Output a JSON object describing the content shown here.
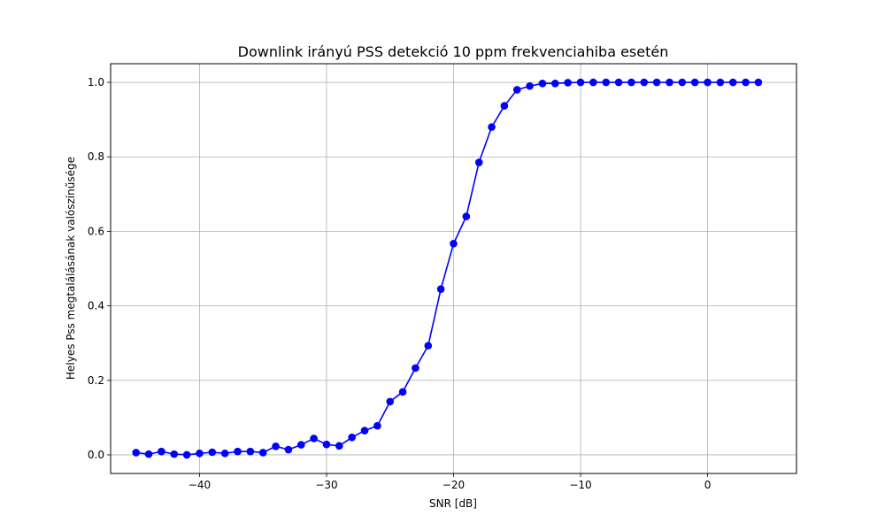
{
  "chart_data": {
    "type": "line",
    "title": "Downlink irányú PSS detekció 10 ppm frekvenciahiba esetén",
    "xlabel": "SNR [dB]",
    "ylabel": "Helyes Pss megtalálásának valószínűsége",
    "xlim": [
      -47,
      7
    ],
    "ylim": [
      -0.05,
      1.05
    ],
    "xticks": [
      -40,
      -30,
      -20,
      -10,
      0
    ],
    "xtick_labels": [
      "−40",
      "−30",
      "−20",
      "−10",
      "0"
    ],
    "yticks": [
      0.0,
      0.2,
      0.4,
      0.6,
      0.8,
      1.0
    ],
    "ytick_labels": [
      "0.0",
      "0.2",
      "0.4",
      "0.6",
      "0.8",
      "1.0"
    ],
    "grid": true,
    "line_color": "#0000ff",
    "grid_color": "#b0b0b0",
    "series": [
      {
        "marker": "circle",
        "x": [
          -45,
          -44,
          -43,
          -42,
          -41,
          -40,
          -39,
          -38,
          -37,
          -36,
          -35,
          -34,
          -33,
          -32,
          -31,
          -30,
          -29,
          -28,
          -27,
          -26,
          -25,
          -24,
          -23,
          -22,
          -21,
          -20,
          -19,
          -18,
          -17,
          -16,
          -15,
          -14,
          -13,
          -12,
          -11,
          -10,
          -9,
          -8,
          -7,
          -6,
          -5,
          -4,
          -3,
          -2,
          -1,
          0,
          1,
          2,
          3,
          4
        ],
        "y": [
          0.006,
          0.002,
          0.009,
          0.002,
          0.0,
          0.004,
          0.007,
          0.004,
          0.009,
          0.009,
          0.006,
          0.023,
          0.014,
          0.027,
          0.044,
          0.028,
          0.024,
          0.047,
          0.065,
          0.078,
          0.143,
          0.169,
          0.233,
          0.293,
          0.445,
          0.567,
          0.64,
          0.785,
          0.88,
          0.937,
          0.98,
          0.99,
          0.997,
          0.997,
          0.999,
          1.0,
          1.0,
          1.0,
          1.0,
          1.0,
          1.0,
          1.0,
          1.0,
          1.0,
          1.0,
          1.0,
          1.0,
          1.0,
          1.0,
          1.0
        ]
      }
    ]
  }
}
